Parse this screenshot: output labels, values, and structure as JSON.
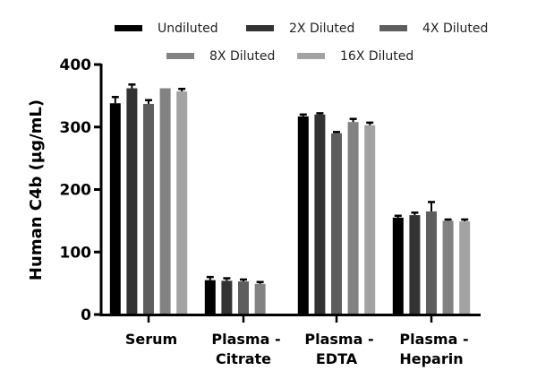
{
  "chart_data": {
    "type": "bar",
    "title": "",
    "xlabel": "",
    "ylabel": "Human C4b (µg/mL)",
    "ylim": [
      0,
      400
    ],
    "yticks": [
      0,
      100,
      200,
      300,
      400
    ],
    "grid": false,
    "legend_position": "top",
    "categories": [
      [
        "Serum"
      ],
      [
        "Plasma -",
        "Citrate"
      ],
      [
        "Plasma -",
        "EDTA"
      ],
      [
        "Plasma -",
        "Heparin"
      ]
    ],
    "category_names": [
      "Serum",
      "Plasma - Citrate",
      "Plasma - EDTA",
      "Plasma - Heparin"
    ],
    "series": [
      {
        "name": "Undiluted",
        "color": "#000000",
        "values": [
          338,
          55,
          317,
          155
        ],
        "errors": [
          10,
          5,
          3,
          3
        ]
      },
      {
        "name": "2X Diluted",
        "color": "#333333",
        "values": [
          362,
          54,
          320,
          159
        ],
        "errors": [
          6,
          4,
          2,
          4
        ]
      },
      {
        "name": "4X Diluted",
        "color": "#5e5e5e",
        "values": [
          337,
          53,
          290,
          165
        ],
        "errors": [
          6,
          3,
          2,
          15
        ]
      },
      {
        "name": "8X Diluted",
        "color": "#828282",
        "values": [
          362,
          49,
          308,
          150
        ],
        "errors": [
          0,
          3,
          5,
          2
        ]
      },
      {
        "name": "16X Diluted",
        "color": "#a3a3a3",
        "values": [
          357,
          null,
          303,
          149
        ],
        "errors": [
          4,
          null,
          4,
          3
        ]
      }
    ]
  }
}
